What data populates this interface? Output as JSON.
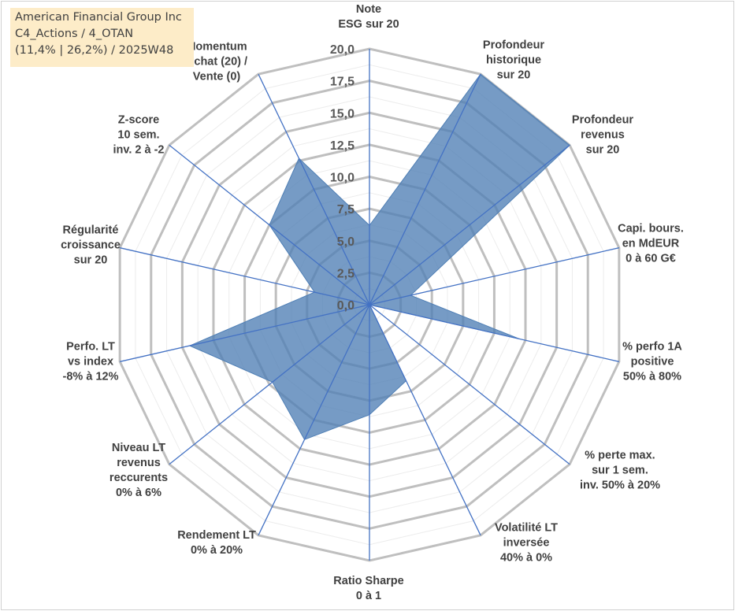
{
  "legend": {
    "line1": "American Financial Group Inc",
    "line2": "C4_Actions / 4_OTAN",
    "line3": "(11,4% | 26,2%) / 2025W48"
  },
  "chart_data": {
    "type": "radar",
    "rlim": [
      0,
      20
    ],
    "ticks": [
      "0,0",
      "2,5",
      "5,0",
      "7,5",
      "10,0",
      "12,5",
      "15,0",
      "17,5",
      "20,0"
    ],
    "grid": true,
    "colors": {
      "fill": "#4f7fb5",
      "axis": "#4472c4",
      "grid": "#bfbfbf"
    },
    "axes": [
      "Note\nESG sur 20",
      "Profondeur\nhistorique\nsur 20",
      "Profondeur\nrevenus\nsur 20",
      "Capi. bours.\nen MdEUR\n0 à 60 G€",
      "% perfo 1A\npositive\n50% à 80%",
      "% perte max.\nsur 1 sem.\ninv. 50% à 20%",
      "Volatilité LT\ninversée\n40% à 0%",
      "Ratio Sharpe\n0 à 1",
      "Rendement LT\n0% à 20%",
      "Niveau LT\nrevenus\nreccurents\n0% à 6%",
      "Perfo. LT\nvs index\n-8% à 12%",
      "Régularité\ncroissance\nsur 20",
      "Z-score\n10 sem.\ninv. 2 à -2",
      "Momentum\nAchat (20) /\nVente (0)"
    ],
    "values": [
      6.2,
      20,
      20,
      3.3,
      12,
      0,
      6.6,
      8.6,
      11.7,
      9.7,
      14.4,
      4.4,
      10,
      12.7
    ]
  }
}
